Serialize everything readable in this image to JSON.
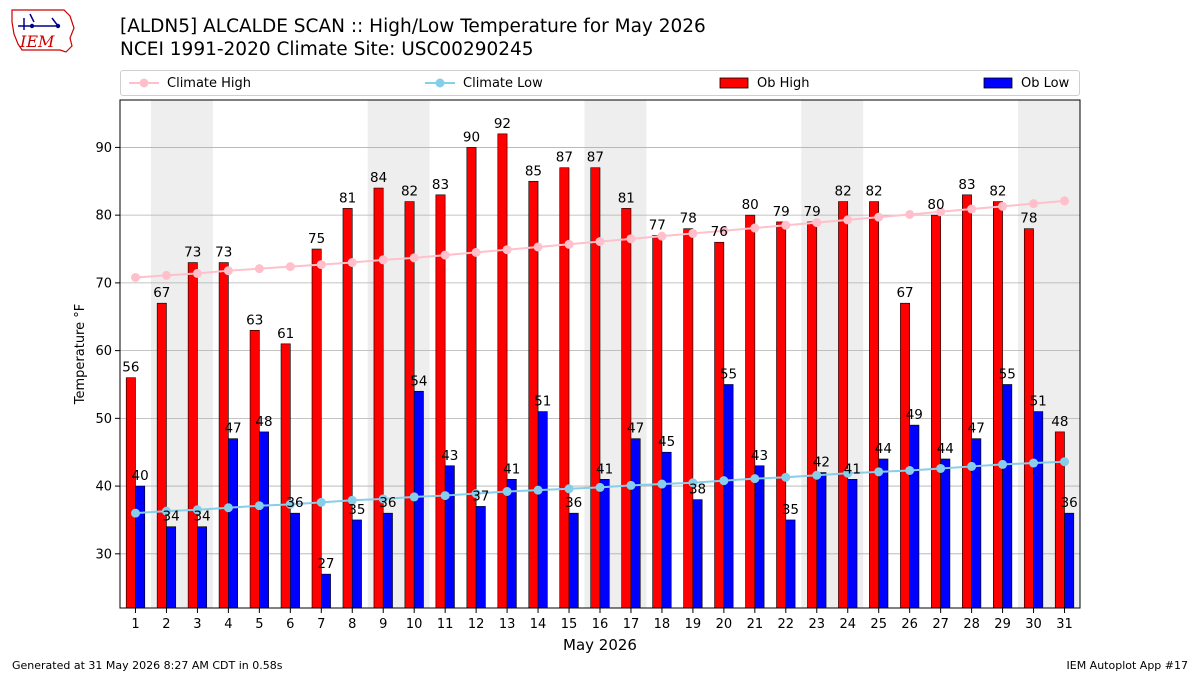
{
  "header": {
    "title": "[ALDN5] ALCALDE SCAN :: High/Low Temperature for May 2026",
    "subtitle": "NCEI 1991-2020 Climate Site: USC00290245",
    "logo_text": "IEM"
  },
  "footer": {
    "generated": "Generated at 31 May 2026 8:27 AM CDT in 0.58s",
    "app": "IEM Autoplot App #17"
  },
  "colors": {
    "ob_high": "#ff0000",
    "ob_low": "#0000ff",
    "climate_high": "#ffc0cb",
    "climate_low": "#87ceeb",
    "weekend_shade": "#eeeeee",
    "grid": "#b0b0b0"
  },
  "chart_data": {
    "type": "bar",
    "xlabel": "May 2026",
    "ylabel": "Temperature °F",
    "ylim": [
      22,
      97
    ],
    "yticks": [
      30,
      40,
      50,
      60,
      70,
      80,
      90
    ],
    "grid": "horizontal",
    "legend_position": "top",
    "shaded_days": [
      [
        2,
        3
      ],
      [
        9,
        10
      ],
      [
        16,
        17
      ],
      [
        23,
        24
      ],
      [
        30,
        31
      ]
    ],
    "categories": [
      "1",
      "2",
      "3",
      "4",
      "5",
      "6",
      "7",
      "8",
      "9",
      "10",
      "11",
      "12",
      "13",
      "14",
      "15",
      "16",
      "17",
      "18",
      "19",
      "20",
      "21",
      "22",
      "23",
      "24",
      "25",
      "26",
      "27",
      "28",
      "29",
      "30",
      "31"
    ],
    "series": [
      {
        "name": "Ob High",
        "type": "bar",
        "values": [
          56,
          67,
          73,
          73,
          63,
          61,
          75,
          81,
          84,
          82,
          83,
          90,
          92,
          85,
          87,
          87,
          81,
          77,
          78,
          76,
          80,
          79,
          79,
          82,
          82,
          67,
          80,
          83,
          82,
          78,
          48
        ]
      },
      {
        "name": "Ob Low",
        "type": "bar",
        "values": [
          40,
          34,
          34,
          47,
          48,
          36,
          27,
          35,
          36,
          54,
          43,
          37,
          41,
          51,
          36,
          41,
          47,
          45,
          38,
          55,
          43,
          35,
          42,
          41,
          44,
          49,
          44,
          47,
          55,
          51,
          36
        ]
      },
      {
        "name": "Climate High",
        "type": "line",
        "values": [
          70.8,
          71.1,
          71.4,
          71.8,
          72.1,
          72.4,
          72.7,
          73.0,
          73.4,
          73.7,
          74.1,
          74.5,
          74.9,
          75.3,
          75.7,
          76.1,
          76.5,
          76.9,
          77.3,
          77.7,
          78.1,
          78.5,
          78.9,
          79.3,
          79.7,
          80.1,
          80.5,
          80.9,
          81.3,
          81.7,
          82.1
        ]
      },
      {
        "name": "Climate Low",
        "type": "line",
        "values": [
          36.0,
          36.3,
          36.5,
          36.8,
          37.1,
          37.3,
          37.6,
          37.9,
          38.1,
          38.4,
          38.6,
          38.9,
          39.2,
          39.4,
          39.6,
          39.8,
          40.1,
          40.3,
          40.5,
          40.8,
          41.1,
          41.3,
          41.6,
          41.9,
          42.1,
          42.3,
          42.6,
          42.9,
          43.2,
          43.4,
          43.6
        ]
      }
    ]
  }
}
